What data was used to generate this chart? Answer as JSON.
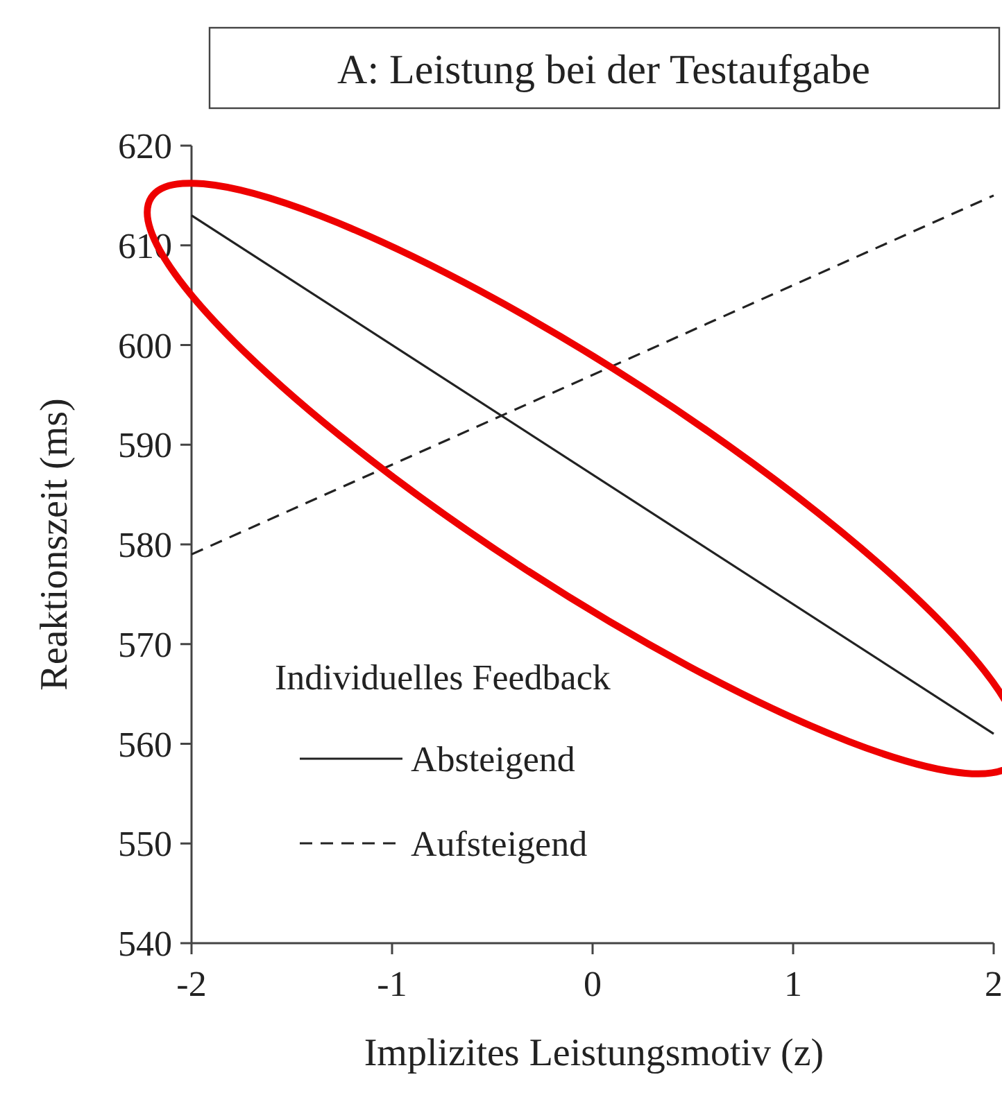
{
  "chart_data": {
    "type": "line",
    "title": "A: Leistung bei der Testaufgabe",
    "xlabel": "Implizites Leistungsmotiv (z)",
    "ylabel": "Reaktionszeit (ms)",
    "legend_title": "Individuelles Feedback",
    "legend": "bottom left",
    "grid": false,
    "x": [
      -2,
      2
    ],
    "xlim": [
      -2,
      2
    ],
    "xticks": [
      -2,
      -1,
      0,
      1,
      2
    ],
    "ylim": [
      540,
      620
    ],
    "yticks": [
      540,
      550,
      560,
      570,
      580,
      590,
      600,
      610,
      620
    ],
    "series": [
      {
        "name": "Absteigend",
        "color": "#222222",
        "line_style": "solid",
        "values": [
          613,
          561
        ]
      },
      {
        "name": "Aufsteigend",
        "color": "#222222",
        "line_style": "dashed",
        "values": [
          579,
          615
        ]
      }
    ]
  }
}
